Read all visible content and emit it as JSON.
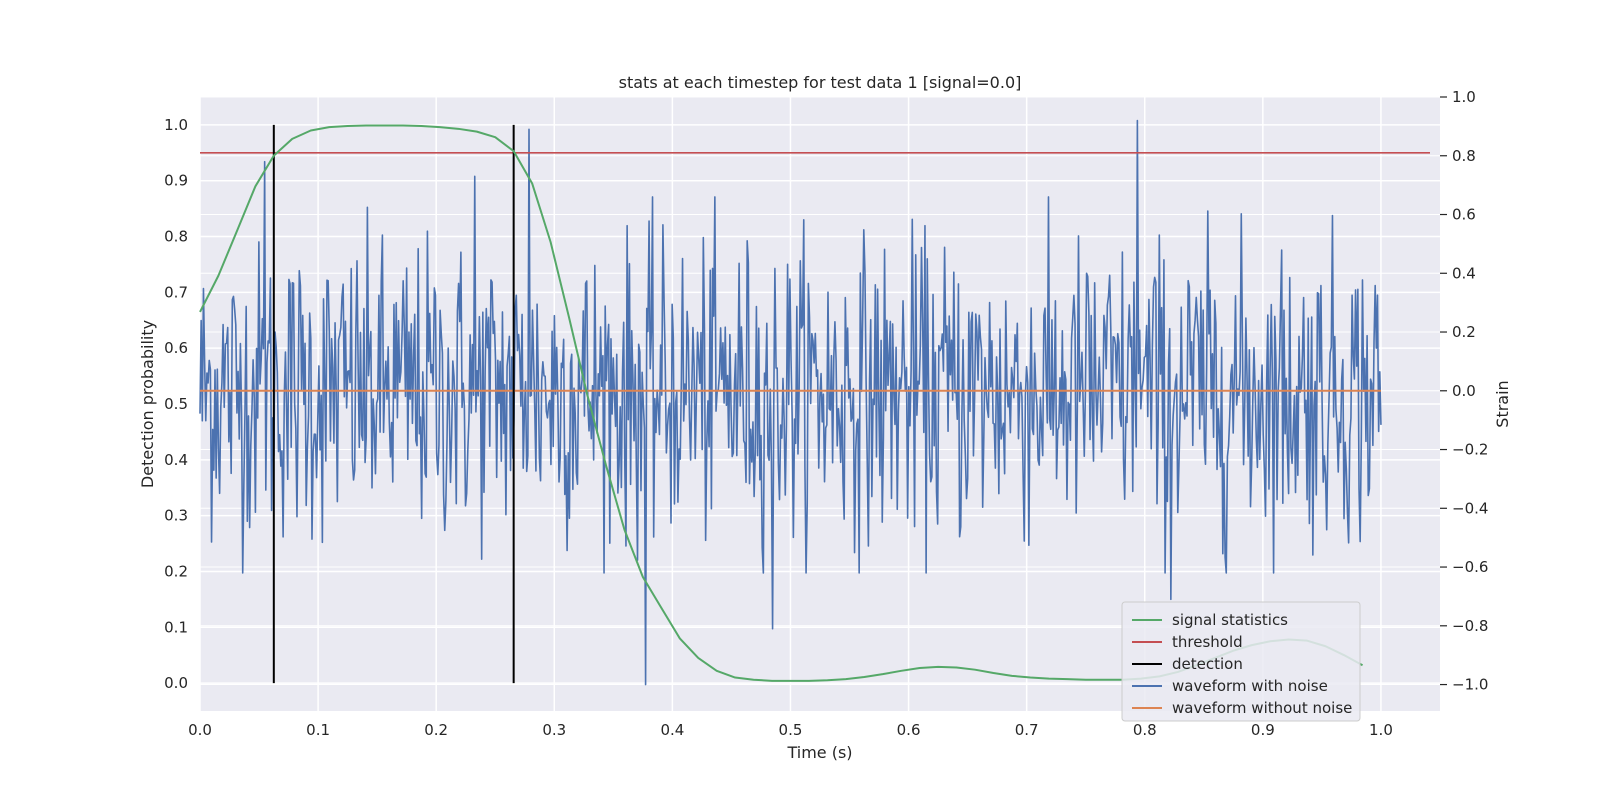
{
  "chart_data": {
    "type": "line",
    "title": "stats at each timestep for test data 1 [signal=0.0]",
    "xlabel": "Time (s)",
    "ylabel": "Detection probability",
    "y2label": "Strain",
    "xlim": [
      0.0,
      1.05
    ],
    "ylim": [
      -0.05,
      1.05
    ],
    "y2lim": [
      -1.09,
      1.0
    ],
    "xticks": [
      "0.0",
      "0.1",
      "0.2",
      "0.3",
      "0.4",
      "0.5",
      "0.6",
      "0.7",
      "0.8",
      "0.9",
      "1.0"
    ],
    "yticks": [
      "0.0",
      "0.1",
      "0.2",
      "0.3",
      "0.4",
      "0.5",
      "0.6",
      "0.7",
      "0.8",
      "0.9",
      "1.0"
    ],
    "y2ticks": [
      "−1.0",
      "−0.8",
      "−0.6",
      "−0.4",
      "−0.2",
      "0.0",
      "0.2",
      "0.4",
      "0.6",
      "0.8",
      "1.0"
    ],
    "grid": true,
    "legend_position": "lower-right",
    "colors": {
      "background": "#eaeaf2",
      "grid": "#ffffff",
      "signal": "#55a868",
      "threshold": "#c44e52",
      "detection": "#000000",
      "noisy": "#4c72b0",
      "clean": "#dd8452"
    },
    "series": [
      {
        "name": "signal statistics",
        "axis": "left",
        "x": [
          0.0,
          0.0156,
          0.0313,
          0.0469,
          0.0625,
          0.0781,
          0.0938,
          0.1094,
          0.125,
          0.1406,
          0.1563,
          0.1719,
          0.1875,
          0.2031,
          0.2188,
          0.2344,
          0.25,
          0.2656,
          0.2813,
          0.2969,
          0.3125,
          0.3281,
          0.3438,
          0.3594,
          0.375,
          0.3906,
          0.4063,
          0.4219,
          0.4375,
          0.4531,
          0.4688,
          0.4844,
          0.5,
          0.5156,
          0.5313,
          0.5469,
          0.5625,
          0.5781,
          0.5938,
          0.6094,
          0.625,
          0.6406,
          0.6563,
          0.6719,
          0.6875,
          0.7031,
          0.7188,
          0.7344,
          0.75,
          0.7656,
          0.7813,
          0.7969,
          0.8125,
          0.8281,
          0.8438,
          0.8594,
          0.875,
          0.8906,
          0.9063,
          0.9219,
          0.9375,
          0.9531,
          0.9688,
          0.9844
        ],
        "values": [
          0.665,
          0.73,
          0.81,
          0.89,
          0.945,
          0.975,
          0.99,
          0.996,
          0.998,
          0.999,
          0.999,
          0.999,
          0.998,
          0.996,
          0.993,
          0.988,
          0.978,
          0.953,
          0.895,
          0.79,
          0.655,
          0.515,
          0.39,
          0.275,
          0.19,
          0.135,
          0.08,
          0.045,
          0.022,
          0.01,
          0.006,
          0.004,
          0.004,
          0.004,
          0.005,
          0.007,
          0.011,
          0.016,
          0.022,
          0.027,
          0.029,
          0.028,
          0.024,
          0.018,
          0.013,
          0.01,
          0.008,
          0.007,
          0.006,
          0.006,
          0.006,
          0.008,
          0.012,
          0.02,
          0.032,
          0.045,
          0.058,
          0.068,
          0.075,
          0.078,
          0.076,
          0.066,
          0.05,
          0.032
        ]
      },
      {
        "name": "threshold",
        "axis": "left",
        "x": [
          0.0,
          1.05
        ],
        "values": [
          0.95,
          0.95
        ]
      },
      {
        "name": "detection",
        "axis": "left",
        "x": [
          0.0625,
          0.2656
        ],
        "values": [
          1.0,
          1.0
        ]
      },
      {
        "name": "waveform with noise",
        "axis": "right",
        "x_range": [
          0.0,
          1.0
        ],
        "n_points": 1024,
        "amplitude_std": 0.25,
        "peaks": [
          [
            0.794,
            0.92
          ],
          [
            0.377,
            -1.0
          ],
          [
            0.279,
            0.89
          ],
          [
            0.055,
            0.78
          ],
          [
            0.233,
            0.73
          ],
          [
            0.822,
            -0.71
          ],
          [
            0.485,
            -0.81
          ]
        ]
      },
      {
        "name": "waveform without noise",
        "axis": "right",
        "x": [
          0.0,
          1.0
        ],
        "values": [
          0.0,
          0.0
        ]
      }
    ]
  }
}
